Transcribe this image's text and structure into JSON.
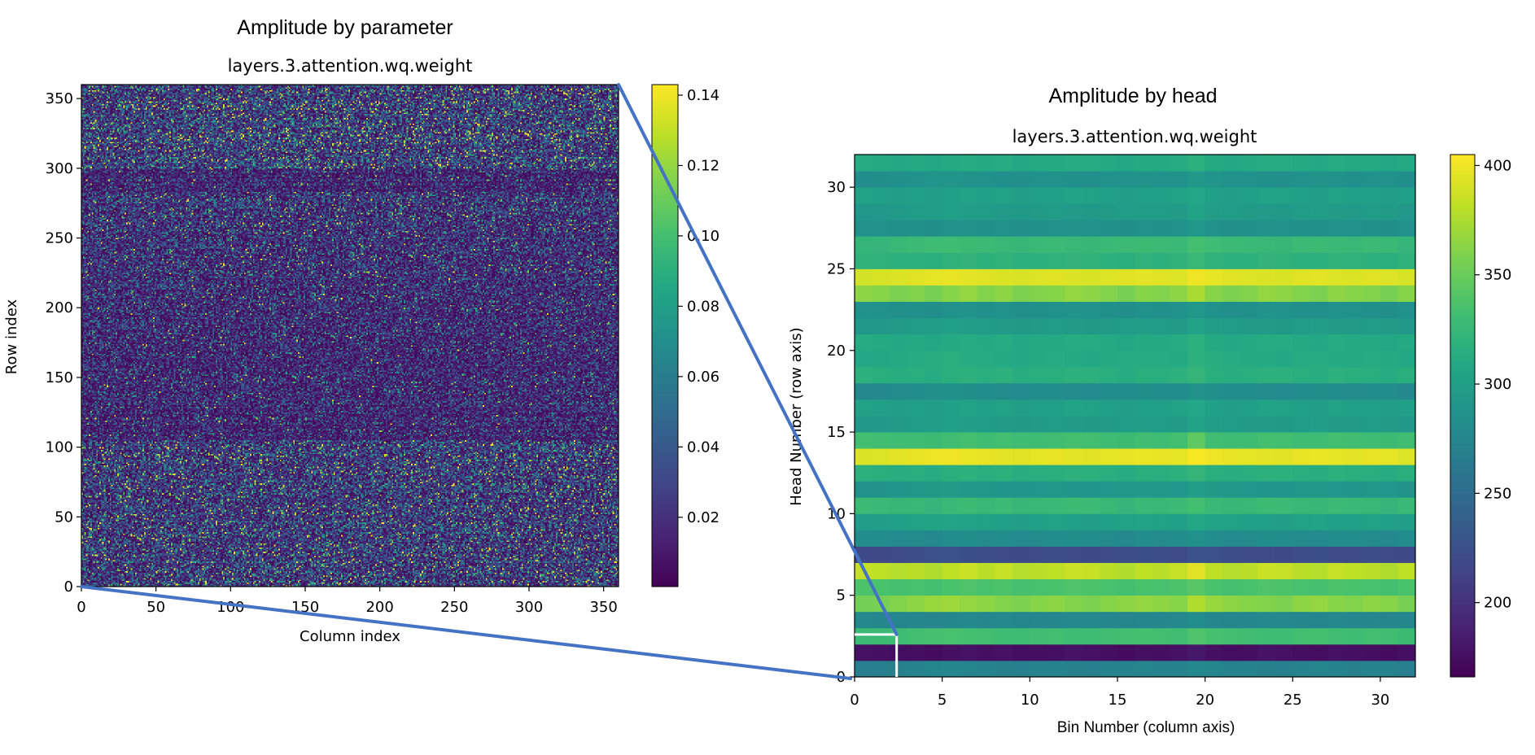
{
  "chart_data": [
    {
      "type": "heatmap",
      "title": "Amplitude by parameter",
      "subtitle": "layers.3.attention.wq.weight",
      "xlabel": "Column index",
      "ylabel": "Row index",
      "shape": [
        360,
        360
      ],
      "xlim": [
        0,
        360
      ],
      "ylim": [
        0,
        360
      ],
      "xticks": [
        "0",
        "50",
        "100",
        "150",
        "200",
        "250",
        "300",
        "350"
      ],
      "yticks": [
        "0",
        "50",
        "100",
        "150",
        "200",
        "250",
        "300",
        "350"
      ],
      "colormap": "viridis",
      "colorbar": {
        "range": [
          0.0003,
          0.143
        ],
        "ticks": [
          "0.02",
          "0.04",
          "0.06",
          "0.08",
          "0.10",
          "0.12",
          "0.14"
        ]
      }
    },
    {
      "type": "heatmap",
      "title": "Amplitude by head",
      "subtitle": "layers.3.attention.wq.weight",
      "xlabel": "Bin Number (column axis)",
      "ylabel": "Head Number (row axis)",
      "xlim": [
        0,
        32
      ],
      "ylim": [
        0,
        32
      ],
      "xticks": [
        "0",
        "5",
        "10",
        "15",
        "20",
        "25",
        "30"
      ],
      "yticks": [
        "0",
        "5",
        "10",
        "15",
        "20",
        "25",
        "30"
      ],
      "colormap": "viridis",
      "colorbar": {
        "range": [
          166,
          405
        ],
        "ticks": [
          "200",
          "250",
          "300",
          "350",
          "400"
        ]
      },
      "highlight_box": {
        "x": [
          0,
          2.4
        ],
        "y": [
          0,
          2.6
        ],
        "color": "#ffffff"
      },
      "values": [
        [
          267,
          268,
          270,
          272,
          274,
          275,
          273,
          272,
          270,
          269,
          271,
          272,
          270,
          269,
          271,
          272,
          273,
          272,
          271,
          278,
          274,
          272,
          271,
          270,
          269,
          272,
          273,
          271,
          270,
          272,
          271,
          268
        ],
        [
          177,
          176,
          174,
          175,
          173,
          176,
          178,
          175,
          177,
          174,
          175,
          176,
          178,
          177,
          175,
          173,
          176,
          175,
          177,
          182,
          176,
          174,
          175,
          178,
          177,
          175,
          174,
          177,
          176,
          175,
          173,
          176
        ],
        [
          327,
          328,
          330,
          332,
          334,
          335,
          333,
          332,
          330,
          329,
          331,
          332,
          330,
          329,
          331,
          332,
          333,
          332,
          331,
          338,
          334,
          332,
          331,
          330,
          329,
          332,
          333,
          331,
          330,
          332,
          331,
          328
        ],
        [
          277,
          276,
          274,
          275,
          273,
          276,
          278,
          275,
          277,
          274,
          275,
          276,
          278,
          277,
          275,
          273,
          276,
          275,
          277,
          282,
          276,
          274,
          275,
          278,
          277,
          275,
          274,
          277,
          276,
          275,
          273,
          276
        ],
        [
          354,
          356,
          360,
          364,
          368,
          370,
          366,
          364,
          360,
          358,
          362,
          364,
          360,
          358,
          362,
          364,
          366,
          364,
          362,
          376,
          368,
          364,
          362,
          360,
          358,
          364,
          366,
          362,
          360,
          364,
          362,
          356
        ],
        [
          337,
          336,
          334,
          335,
          333,
          336,
          338,
          335,
          337,
          334,
          335,
          336,
          338,
          337,
          335,
          333,
          336,
          335,
          337,
          342,
          336,
          334,
          335,
          338,
          337,
          335,
          334,
          337,
          336,
          335,
          333,
          336
        ],
        [
          384,
          382,
          378,
          380,
          376,
          382,
          386,
          380,
          384,
          378,
          380,
          382,
          386,
          384,
          380,
          376,
          382,
          380,
          384,
          394,
          382,
          378,
          380,
          386,
          384,
          380,
          378,
          384,
          382,
          380,
          376,
          382
        ],
        [
          217,
          218,
          220,
          222,
          224,
          225,
          223,
          222,
          220,
          219,
          221,
          222,
          220,
          219,
          221,
          222,
          223,
          222,
          221,
          228,
          224,
          222,
          221,
          220,
          219,
          222,
          223,
          221,
          220,
          222,
          221,
          218
        ],
        [
          282,
          281,
          279,
          280,
          278,
          281,
          283,
          280,
          282,
          279,
          280,
          281,
          283,
          282,
          280,
          278,
          281,
          280,
          282,
          287,
          281,
          279,
          280,
          283,
          282,
          280,
          279,
          282,
          281,
          280,
          278,
          281
        ],
        [
          297,
          298,
          300,
          302,
          304,
          305,
          303,
          302,
          300,
          299,
          301,
          302,
          300,
          299,
          301,
          302,
          303,
          302,
          301,
          308,
          304,
          302,
          301,
          300,
          299,
          302,
          303,
          301,
          300,
          302,
          301,
          298
        ],
        [
          327,
          326,
          324,
          325,
          323,
          326,
          328,
          325,
          327,
          324,
          325,
          326,
          328,
          327,
          325,
          323,
          326,
          325,
          327,
          332,
          326,
          324,
          325,
          328,
          327,
          325,
          324,
          327,
          326,
          325,
          323,
          326
        ],
        [
          287,
          288,
          290,
          292,
          294,
          295,
          293,
          292,
          290,
          289,
          291,
          292,
          290,
          289,
          291,
          292,
          293,
          292,
          291,
          298,
          294,
          292,
          291,
          290,
          289,
          292,
          293,
          291,
          290,
          292,
          291,
          288
        ],
        [
          317,
          316,
          314,
          315,
          313,
          316,
          318,
          315,
          317,
          314,
          315,
          316,
          318,
          317,
          315,
          313,
          316,
          315,
          317,
          322,
          316,
          314,
          315,
          318,
          317,
          315,
          314,
          317,
          316,
          315,
          313,
          316
        ],
        [
          392,
          393,
          395,
          397,
          399,
          400,
          398,
          397,
          395,
          394,
          396,
          397,
          395,
          394,
          396,
          397,
          398,
          397,
          396,
          403,
          399,
          397,
          396,
          395,
          394,
          397,
          398,
          396,
          395,
          397,
          396,
          393
        ],
        [
          332,
          331,
          329,
          330,
          328,
          331,
          333,
          330,
          332,
          329,
          330,
          331,
          333,
          332,
          330,
          328,
          331,
          330,
          332,
          345,
          331,
          329,
          330,
          333,
          332,
          330,
          329,
          332,
          331,
          330,
          328,
          331
        ],
        [
          292,
          293,
          295,
          297,
          299,
          300,
          298,
          297,
          295,
          294,
          296,
          297,
          295,
          294,
          296,
          297,
          298,
          297,
          296,
          303,
          299,
          297,
          296,
          295,
          294,
          297,
          298,
          296,
          295,
          297,
          296,
          293
        ],
        [
          302,
          301,
          299,
          300,
          298,
          301,
          303,
          300,
          302,
          299,
          300,
          301,
          303,
          302,
          300,
          298,
          301,
          300,
          302,
          307,
          301,
          299,
          300,
          303,
          302,
          300,
          299,
          302,
          301,
          300,
          298,
          301
        ],
        [
          277,
          278,
          280,
          282,
          284,
          285,
          283,
          282,
          280,
          279,
          281,
          282,
          280,
          279,
          281,
          282,
          283,
          282,
          281,
          288,
          284,
          282,
          281,
          280,
          279,
          282,
          283,
          281,
          280,
          282,
          281,
          278
        ],
        [
          317,
          316,
          314,
          315,
          313,
          316,
          318,
          315,
          317,
          314,
          315,
          316,
          318,
          317,
          315,
          313,
          316,
          315,
          317,
          322,
          316,
          314,
          315,
          318,
          317,
          315,
          314,
          317,
          316,
          315,
          313,
          316
        ],
        [
          307,
          308,
          310,
          312,
          314,
          315,
          313,
          312,
          310,
          309,
          311,
          312,
          310,
          309,
          311,
          312,
          313,
          312,
          311,
          318,
          314,
          312,
          311,
          310,
          309,
          312,
          313,
          311,
          310,
          312,
          311,
          308
        ],
        [
          312,
          311,
          309,
          310,
          308,
          311,
          313,
          310,
          312,
          309,
          310,
          311,
          313,
          312,
          310,
          308,
          311,
          310,
          312,
          317,
          311,
          309,
          310,
          313,
          312,
          310,
          309,
          312,
          311,
          310,
          308,
          311
        ],
        [
          292,
          293,
          295,
          297,
          299,
          300,
          298,
          297,
          295,
          294,
          296,
          297,
          295,
          294,
          296,
          297,
          298,
          297,
          296,
          303,
          299,
          297,
          296,
          295,
          294,
          297,
          298,
          296,
          295,
          297,
          296,
          293
        ],
        [
          287,
          286,
          284,
          285,
          283,
          286,
          288,
          285,
          287,
          284,
          285,
          286,
          288,
          287,
          285,
          283,
          286,
          285,
          287,
          292,
          286,
          284,
          285,
          288,
          287,
          285,
          284,
          287,
          286,
          285,
          283,
          286
        ],
        [
          364,
          362,
          358,
          360,
          356,
          362,
          366,
          360,
          364,
          358,
          360,
          362,
          366,
          364,
          360,
          356,
          362,
          360,
          364,
          374,
          362,
          358,
          360,
          366,
          364,
          360,
          358,
          364,
          362,
          360,
          356,
          362
        ],
        [
          389,
          390,
          392,
          394,
          396,
          397,
          395,
          394,
          392,
          391,
          393,
          394,
          392,
          391,
          393,
          394,
          395,
          394,
          393,
          400,
          396,
          394,
          393,
          392,
          391,
          394,
          395,
          393,
          392,
          394,
          393,
          390
        ],
        [
          320,
          319,
          317,
          318,
          316,
          319,
          321,
          318,
          320,
          317,
          318,
          319,
          321,
          320,
          318,
          316,
          319,
          318,
          320,
          325,
          319,
          317,
          318,
          321,
          320,
          318,
          317,
          320,
          319,
          318,
          316,
          319
        ],
        [
          322,
          323,
          325,
          327,
          329,
          330,
          328,
          327,
          325,
          324,
          326,
          327,
          325,
          324,
          326,
          327,
          328,
          327,
          326,
          333,
          329,
          327,
          326,
          325,
          324,
          327,
          328,
          326,
          325,
          327,
          326,
          323
        ],
        [
          287,
          286,
          284,
          285,
          283,
          286,
          288,
          285,
          287,
          284,
          285,
          286,
          288,
          287,
          285,
          283,
          286,
          285,
          287,
          292,
          286,
          284,
          285,
          288,
          287,
          285,
          284,
          287,
          286,
          285,
          283,
          286
        ],
        [
          292,
          293,
          295,
          297,
          299,
          300,
          298,
          297,
          295,
          294,
          296,
          297,
          295,
          294,
          296,
          297,
          298,
          297,
          296,
          303,
          299,
          297,
          296,
          295,
          294,
          297,
          298,
          296,
          295,
          297,
          296,
          293
        ],
        [
          302,
          301,
          299,
          300,
          298,
          301,
          303,
          300,
          302,
          299,
          300,
          301,
          303,
          302,
          300,
          298,
          301,
          300,
          302,
          307,
          301,
          299,
          300,
          303,
          302,
          300,
          299,
          302,
          301,
          300,
          298,
          301
        ],
        [
          282,
          283,
          285,
          287,
          289,
          290,
          288,
          287,
          285,
          284,
          286,
          287,
          285,
          284,
          286,
          287,
          288,
          287,
          286,
          293,
          289,
          287,
          286,
          285,
          284,
          287,
          288,
          286,
          285,
          287,
          286,
          283
        ],
        [
          312,
          311,
          309,
          310,
          308,
          311,
          313,
          310,
          312,
          309,
          310,
          311,
          313,
          312,
          310,
          308,
          311,
          310,
          312,
          317,
          311,
          309,
          310,
          313,
          312,
          310,
          309,
          312,
          311,
          310,
          308,
          311
        ]
      ]
    }
  ],
  "connector_color": "#4472c4"
}
